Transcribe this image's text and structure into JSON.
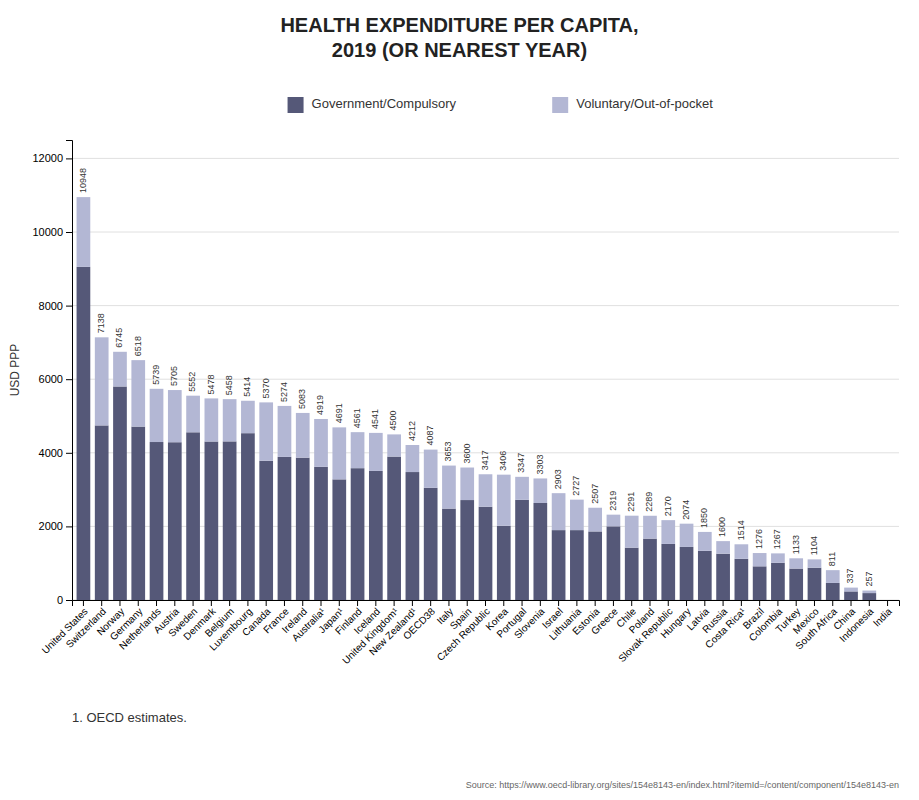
{
  "chart_data": {
    "type": "bar",
    "stacked": true,
    "title": "HEALTH EXPENDITURE PER CAPITA,\n2019 (OR NEAREST YEAR)",
    "ylabel": "USD PPP",
    "annotations": [
      "1. OECD estimates.",
      "Source: https://www.oecd-library.org/sites/154e8143-en/index.html?itemId=/content/component/154e8143-en"
    ],
    "categories": [
      "United States",
      "Switzerland",
      "Norway",
      "Germany",
      "Netherlands",
      "Austria",
      "Sweden",
      "Denmark",
      "Belgium",
      "Luxembourg",
      "Canada",
      "France",
      "Ireland",
      "Australia¹",
      "Japan¹",
      "Finland",
      "Iceland",
      "United Kingdom¹",
      "New Zealand¹",
      "OECD38",
      "Italy",
      "Spain",
      "Czech Republic",
      "Korea",
      "Portugal",
      "Slovenia",
      "Israel",
      "Lithuania",
      "Estonia",
      "Greece",
      "Chile",
      "Poland",
      "Slovak Republic",
      "Hungary",
      "Latvia",
      "Russia",
      "Costa Rica¹",
      "Brazil",
      "Colombia",
      "Turkey",
      "Mexico",
      "South Africa",
      "China",
      "Indonesia",
      "India"
    ],
    "series": [
      {
        "name": "Government/Compulsory",
        "color": "#555878",
        "values": [
          9053,
          4744,
          5802,
          4712,
          4293,
          4287,
          4557,
          4307,
          4310,
          4533,
          3784,
          3889,
          3868,
          3619,
          3278,
          3582,
          3507,
          3897,
          3477,
          3049,
          2484,
          2716,
          2534,
          2017,
          2722,
          2636,
          1899,
          1899,
          1863,
          2002,
          1422,
          1668,
          1524,
          1442,
          1336,
          1258,
          1120,
          915,
          1011,
          854,
          877,
          464,
          233,
          188,
          0
        ]
      },
      {
        "name": "Voluntary/Out-of-pocket",
        "color": "#b3b7d4",
        "values": [
          1895,
          2394,
          943,
          1806,
          1446,
          1418,
          995,
          1171,
          1148,
          881,
          1586,
          1385,
          1215,
          1300,
          1413,
          979,
          1034,
          603,
          735,
          1038,
          1169,
          884,
          883,
          1389,
          625,
          667,
          1004,
          828,
          644,
          317,
          869,
          621,
          646,
          632,
          514,
          342,
          394,
          361,
          256,
          279,
          227,
          347,
          104,
          69,
          0
        ]
      }
    ],
    "totals": [
      10948,
      7138,
      6745,
      6518,
      5739,
      5705,
      5552,
      5478,
      5458,
      5414,
      5370,
      5274,
      5083,
      4919,
      4691,
      4561,
      4541,
      4500,
      4212,
      4087,
      3653,
      3600,
      3417,
      3406,
      3347,
      3303,
      2903,
      2727,
      2507,
      2319,
      2291,
      2289,
      2170,
      2074,
      1850,
      1600,
      1514,
      1276,
      1267,
      1133,
      1104,
      811,
      337,
      257,
      0
    ],
    "ylim": [
      0,
      12500
    ],
    "yticks": [
      0,
      2000,
      4000,
      6000,
      8000,
      10000,
      12000
    ],
    "grid": true,
    "legend": "top"
  }
}
